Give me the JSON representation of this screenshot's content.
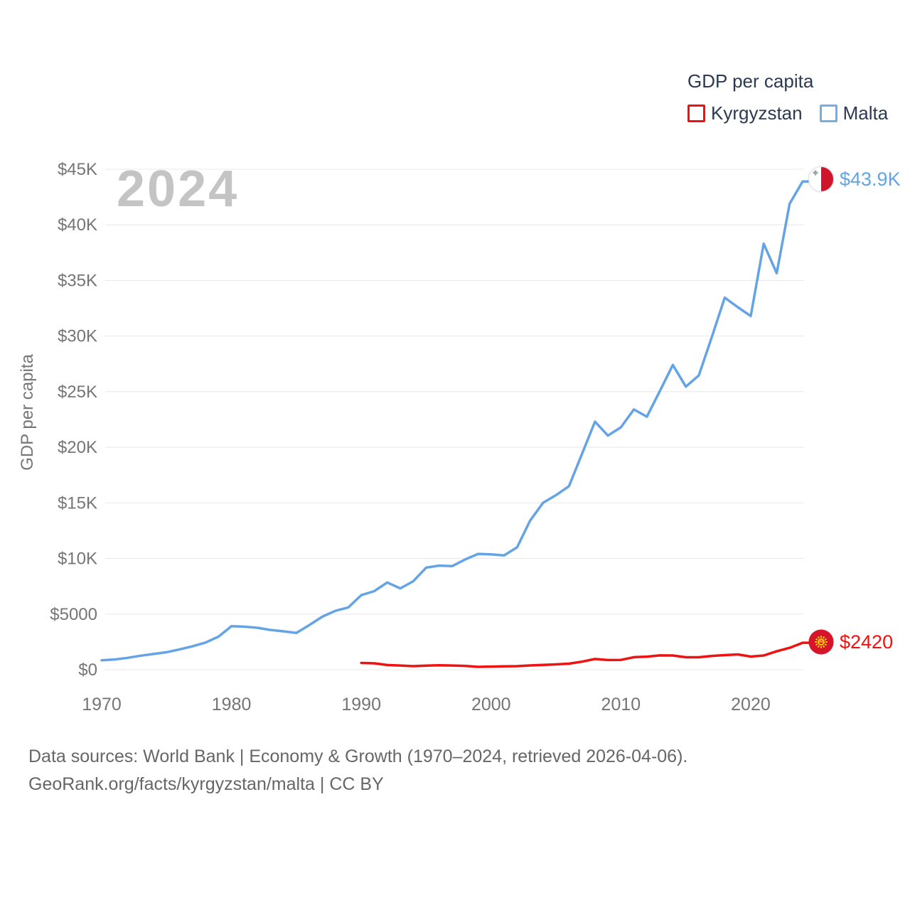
{
  "legend": {
    "title": "GDP per capita",
    "items": [
      {
        "label": "Kyrgyzstan",
        "color": "#ee1310"
      },
      {
        "label": "Malta",
        "color": "#74aee3"
      }
    ]
  },
  "watermark": "2024",
  "end_labels": {
    "malta": {
      "text": "$43.9K",
      "color": "#64a4e4"
    },
    "kyrgyzstan": {
      "text": "$2420",
      "color": "#ee1310"
    }
  },
  "footer": {
    "line1": "Data sources: World Bank | Economy & Growth (1970–2024, retrieved 2026-04-06).",
    "line2": "GeoRank.org/facts/kyrgyzstan/malta | CC BY"
  },
  "chart_data": {
    "type": "line",
    "title": "GDP per capita",
    "xlabel": "",
    "ylabel": "GDP per capita",
    "xlim": [
      1970,
      2024
    ],
    "ylim": [
      0,
      45000
    ],
    "grid": "horizontal",
    "legend_position": "top-right",
    "xticks": [
      1970,
      1980,
      1990,
      2000,
      2010,
      2020
    ],
    "yticks": [
      {
        "value": 0,
        "label": "$0"
      },
      {
        "value": 5000,
        "label": "$5000"
      },
      {
        "value": 10000,
        "label": "$10K"
      },
      {
        "value": 15000,
        "label": "$15K"
      },
      {
        "value": 20000,
        "label": "$20K"
      },
      {
        "value": 25000,
        "label": "$25K"
      },
      {
        "value": 30000,
        "label": "$30K"
      },
      {
        "value": 35000,
        "label": "$35K"
      },
      {
        "value": 40000,
        "label": "$40K"
      },
      {
        "value": 45000,
        "label": "$45K"
      }
    ],
    "series": [
      {
        "name": "Malta",
        "color": "#64a4e4",
        "start_year": 1970,
        "end_value_label": "$43.9K",
        "values": [
          850,
          920,
          1070,
          1260,
          1410,
          1575,
          1825,
          2100,
          2440,
          2970,
          3915,
          3870,
          3770,
          3575,
          3450,
          3310,
          4015,
          4770,
          5290,
          5600,
          6705,
          7065,
          7845,
          7310,
          7950,
          9180,
          9355,
          9315,
          9915,
          10410,
          10375,
          10280,
          11000,
          13400,
          15000,
          15700,
          16500,
          19400,
          22300,
          21050,
          21800,
          23400,
          22750,
          25050,
          27400,
          25450,
          26450,
          29900,
          33450,
          32600,
          31800,
          38300,
          35650,
          41900,
          43900
        ]
      },
      {
        "name": "Kyrgyzstan",
        "color": "#ee1310",
        "start_year": 1990,
        "end_value_label": "$2420",
        "values": [
          609,
          576,
          421,
          379,
          321,
          364,
          395,
          376,
          345,
          258,
          280,
          308,
          321,
          381,
          433,
          477,
          543,
          722,
          966,
          871,
          880,
          1124,
          1178,
          1282,
          1280,
          1121,
          1121,
          1243,
          1308,
          1374,
          1182,
          1277,
          1655,
          1970,
          2420
        ]
      }
    ]
  }
}
